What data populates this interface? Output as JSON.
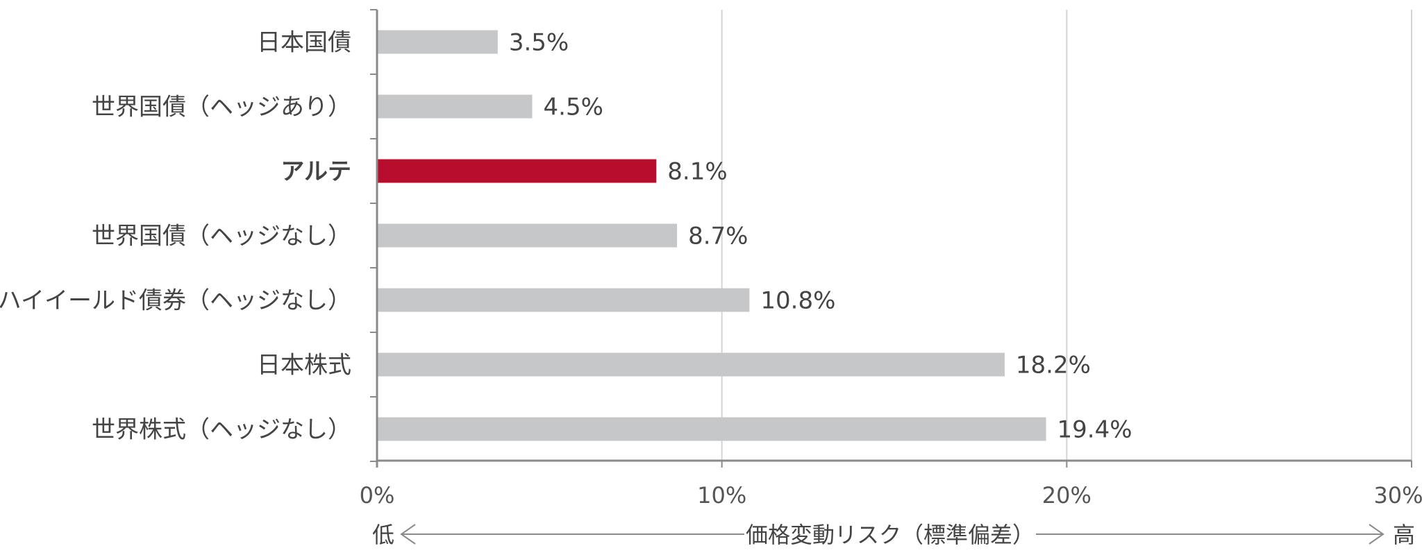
{
  "chart_data": {
    "type": "bar",
    "orientation": "horizontal",
    "categories": [
      "日本国債",
      "世界国債（ヘッジあり）",
      "アルテ",
      "世界国債（ヘッジなし）",
      "米国ハイイールド債券（ヘッジなし）",
      "日本株式",
      "世界株式（ヘッジなし）"
    ],
    "values": [
      3.5,
      4.5,
      8.1,
      8.7,
      10.8,
      18.2,
      19.4
    ],
    "value_labels": [
      "3.5%",
      "4.5%",
      "8.1%",
      "8.7%",
      "10.8%",
      "18.2%",
      "19.4%"
    ],
    "highlight_index": 2,
    "xlim": [
      0,
      30
    ],
    "xticks": [
      0,
      10,
      20,
      30
    ],
    "xtick_labels": [
      "0%",
      "10%",
      "20%",
      "30%"
    ],
    "xlabel": "価格変動リスク（標準偏差）",
    "xlabel_low": "低",
    "xlabel_high": "高",
    "grid": "vertical",
    "colors": {
      "bar": "#c6c7c8",
      "highlight": "#b80d2d",
      "axis": "#8a8a8a",
      "grid": "#d4d4d4",
      "text": "#444444"
    }
  }
}
